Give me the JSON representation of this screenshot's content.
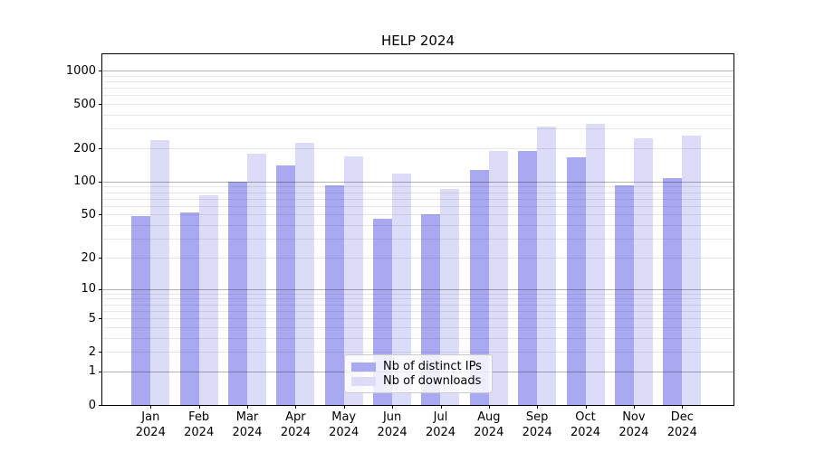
{
  "chart_data": {
    "type": "bar",
    "title": "HELP 2024",
    "categories": [
      "Jan 2024",
      "Feb 2024",
      "Mar 2024",
      "Apr 2024",
      "May 2024",
      "Jun 2024",
      "Jul 2024",
      "Aug 2024",
      "Sep 2024",
      "Oct 2024",
      "Nov 2024",
      "Dec 2024"
    ],
    "series": [
      {
        "name": "Nb of distinct IPs",
        "color": "#a9a9f2",
        "values": [
          49,
          52,
          100,
          141,
          92,
          46,
          50,
          128,
          190,
          165,
          92,
          108
        ]
      },
      {
        "name": "Nb of downloads",
        "color": "#dcdcf8",
        "values": [
          235,
          75,
          178,
          225,
          168,
          118,
          86,
          190,
          316,
          329,
          245,
          262
        ]
      }
    ],
    "xlabel": "",
    "ylabel": "",
    "y_scale": "log1p",
    "ylim": [
      0,
      1400
    ],
    "y_ticks": [
      0,
      1,
      2,
      5,
      10,
      20,
      50,
      100,
      200,
      500,
      1000
    ],
    "grid": {
      "on": true,
      "major": [
        1,
        10,
        100,
        1000
      ],
      "minor": [
        2,
        3,
        4,
        5,
        6,
        7,
        8,
        9,
        20,
        30,
        40,
        50,
        60,
        70,
        80,
        90,
        200,
        300,
        400,
        500,
        600,
        700,
        800,
        900
      ]
    },
    "legend_position": "lower-center-inside"
  }
}
